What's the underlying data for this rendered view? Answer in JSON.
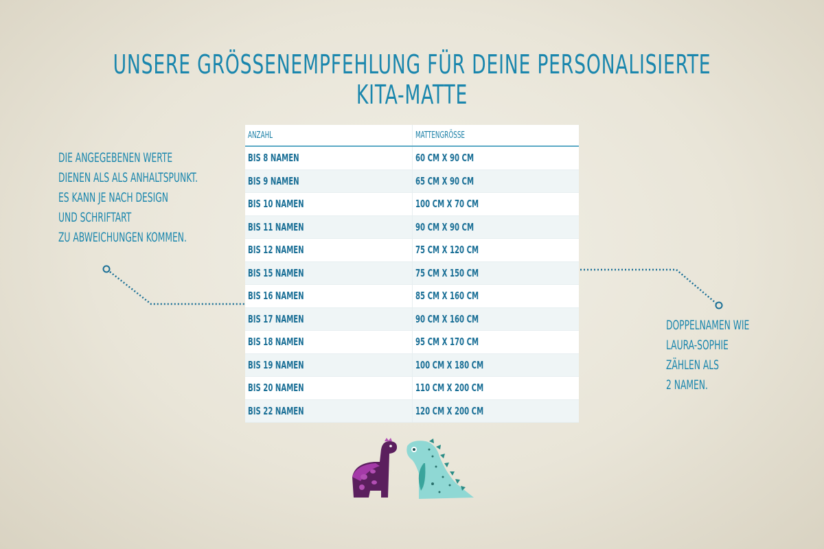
{
  "title": "Unsere Größenempfehlung für deine personalisierte Kita-Matte",
  "left_note": [
    "Die angegebenen Werte",
    "dienen als als Anhaltspunkt.",
    "Es kann je nach Design",
    "und Schriftart",
    "zu Abweichungen kommen."
  ],
  "right_note": [
    "Doppelnamen wie",
    "Laura-Sophie",
    "zählen als",
    "2 Namen."
  ],
  "table": {
    "headers": [
      "Anzahl",
      "Mattengröße"
    ],
    "rows": [
      [
        "bis 8 Namen",
        "60 cm x 90 cm"
      ],
      [
        "bis 9 Namen",
        "65 cm x 90 cm"
      ],
      [
        "bis 10 Namen",
        "100 cm x 70 cm"
      ],
      [
        "bis 11 Namen",
        "90 cm x 90 cm"
      ],
      [
        "bis 12 Namen",
        "75 cm x 120 cm"
      ],
      [
        "bis 15 Namen",
        "75 cm x 150 cm"
      ],
      [
        "bis 16 Namen",
        "85 cm x 160 cm"
      ],
      [
        "bis 17 Namen",
        "90 cm x 160 cm"
      ],
      [
        "bis 18 Namen",
        "95 cm x 170 cm"
      ],
      [
        "bis 19 Namen",
        "100 cm x 180 cm"
      ],
      [
        "bis 20 Namen",
        "110 cm x 200 cm"
      ],
      [
        "bis 22 Namen",
        "120 cm x 200 cm"
      ]
    ]
  },
  "colors": {
    "accent": "#1a86ad",
    "purple_dino": "#5b1f5e",
    "teal_dino": "#8fd8d4"
  }
}
